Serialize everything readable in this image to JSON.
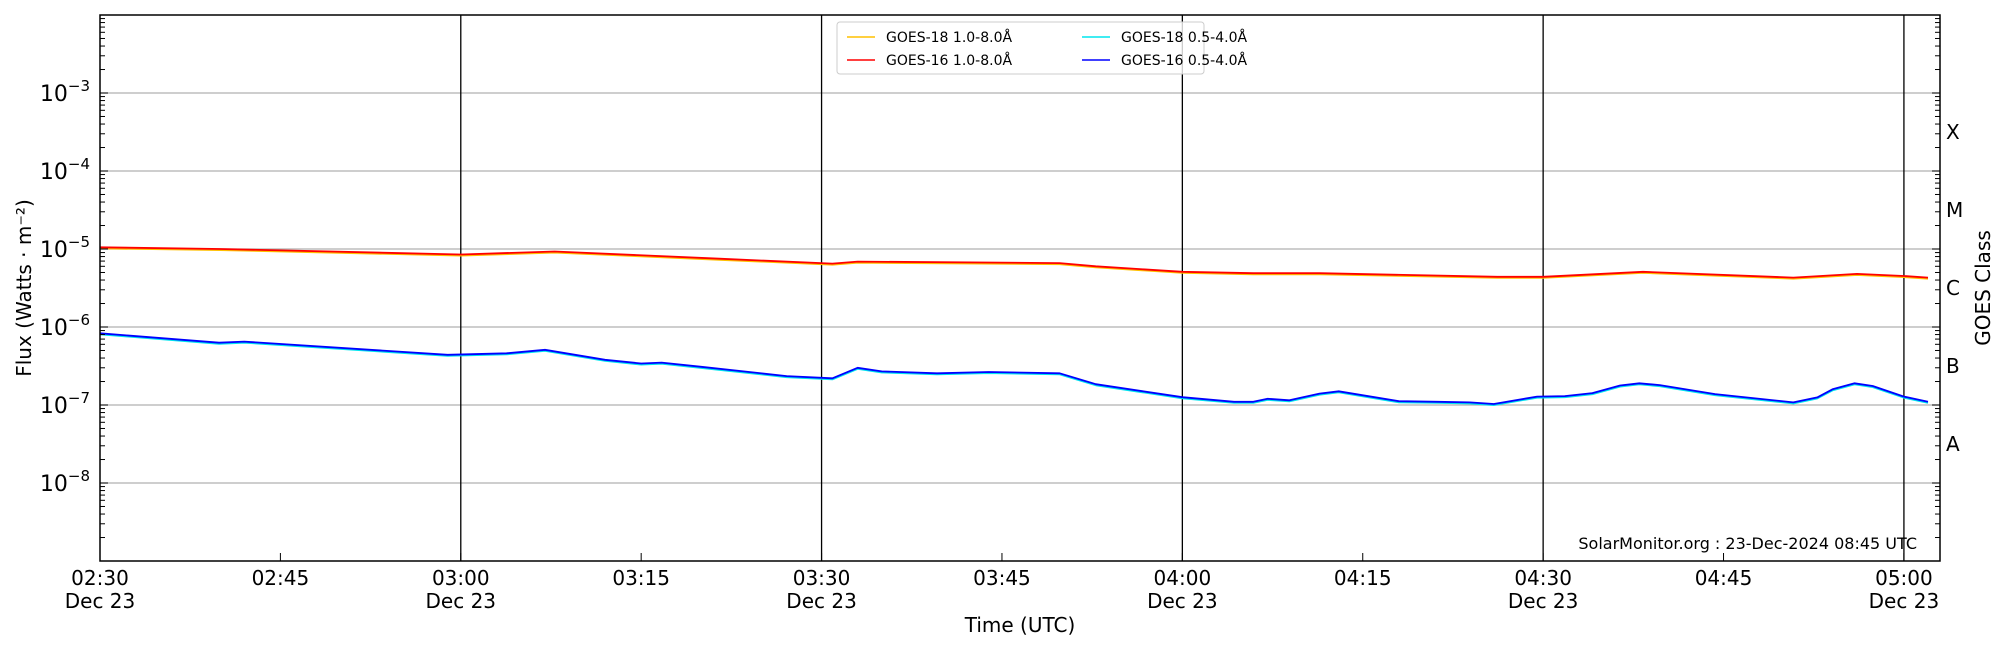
{
  "chart_data": {
    "type": "line",
    "title": "",
    "xlabel": "Time (UTC)",
    "ylabel": "Flux (Watts · m⁻²)",
    "y2label": "GOES Class",
    "yscale": "log",
    "ylim": [
      1e-09,
      0.01
    ],
    "x_unit": "minutes after 02:30 UTC, 23 Dec",
    "xlim": [
      0,
      153
    ],
    "grid": "horizontal major",
    "legend_position": "top-center",
    "x_ticks": [
      {
        "t": 0,
        "time": "02:30",
        "date": "Dec 23"
      },
      {
        "t": 15,
        "time": "02:45",
        "date": ""
      },
      {
        "t": 30,
        "time": "03:00",
        "date": "Dec 23"
      },
      {
        "t": 45,
        "time": "03:15",
        "date": ""
      },
      {
        "t": 60,
        "time": "03:30",
        "date": "Dec 23"
      },
      {
        "t": 75,
        "time": "03:45",
        "date": ""
      },
      {
        "t": 90,
        "time": "04:00",
        "date": "Dec 23"
      },
      {
        "t": 105,
        "time": "04:15",
        "date": ""
      },
      {
        "t": 120,
        "time": "04:30",
        "date": "Dec 23"
      },
      {
        "t": 135,
        "time": "04:45",
        "date": ""
      },
      {
        "t": 150,
        "time": "05:00",
        "date": "Dec 23"
      }
    ],
    "y_ticks": [
      {
        "exp": -3,
        "base": "10",
        "sup": "−3"
      },
      {
        "exp": -4,
        "base": "10",
        "sup": "−4"
      },
      {
        "exp": -5,
        "base": "10",
        "sup": "−5"
      },
      {
        "exp": -6,
        "base": "10",
        "sup": "−6"
      },
      {
        "exp": -7,
        "base": "10",
        "sup": "−7"
      },
      {
        "exp": -8,
        "base": "10",
        "sup": "−8"
      }
    ],
    "day_lines": [
      30,
      60,
      90,
      120,
      150
    ],
    "goes_classes": [
      {
        "label": "X",
        "logmid": -3.5
      },
      {
        "label": "M",
        "logmid": -4.5
      },
      {
        "label": "C",
        "logmid": -5.5
      },
      {
        "label": "B",
        "logmid": -6.5
      },
      {
        "label": "A",
        "logmid": -7.5
      }
    ],
    "legend": [
      "GOES-18 1.0-8.0Å",
      "GOES-18 0.5-4.0Å",
      "GOES-16 1.0-8.0Å",
      "GOES-16 0.5-4.0Å"
    ],
    "series": [
      {
        "name": "GOES-18 1.0-8.0Å",
        "color": "#ffc000",
        "ref": 2
      },
      {
        "name": "GOES-18 0.5-4.0Å",
        "color": "#00e5ee",
        "ref": 3
      },
      {
        "name": "GOES-16 1.0-8.0Å",
        "color": "#ff0000",
        "t": [
          0,
          10,
          30,
          37.8,
          51.5,
          60.9,
          63,
          79.8,
          82.8,
          90,
          95.9,
          101.4,
          116.2,
          120,
          128.3,
          140.8,
          146.1,
          150,
          152
        ],
        "values": [
          1.05e-05,
          1e-05,
          8.5e-06,
          9.3e-06,
          7.5e-06,
          6.5e-06,
          6.9e-06,
          6.6e-06,
          6e-06,
          5.1e-06,
          4.9e-06,
          4.9e-06,
          4.4e-06,
          4.4e-06,
          5.1e-06,
          4.3e-06,
          4.8e-06,
          4.5e-06,
          4.3e-06
        ]
      },
      {
        "name": "GOES-16 0.5-4.0Å",
        "color": "#0000ff",
        "t": [
          0,
          9.9,
          12,
          28.9,
          33.8,
          37,
          42,
          45,
          46.7,
          49.9,
          57.1,
          60.9,
          63,
          65,
          69.6,
          73.9,
          79.8,
          82.8,
          90,
          94.3,
          95.9,
          97.1,
          98.9,
          101.4,
          103,
          108,
          111.3,
          113.9,
          115.9,
          119.5,
          121.8,
          124.1,
          126.4,
          128,
          129.7,
          134.3,
          140.8,
          142.8,
          144.1,
          145.9,
          147.4,
          150,
          152
        ],
        "values": [
          8.3e-07,
          6.3e-07,
          6.5e-07,
          4.4e-07,
          4.6e-07,
          5.1e-07,
          3.8e-07,
          3.4e-07,
          3.5e-07,
          3.1e-07,
          2.35e-07,
          2.2e-07,
          3e-07,
          2.7e-07,
          2.55e-07,
          2.65e-07,
          2.55e-07,
          1.85e-07,
          1.26e-07,
          1.1e-07,
          1.1e-07,
          1.2e-07,
          1.15e-07,
          1.4e-07,
          1.5e-07,
          1.12e-07,
          1.1e-07,
          1.08e-07,
          1.03e-07,
          1.28e-07,
          1.3e-07,
          1.42e-07,
          1.78e-07,
          1.9e-07,
          1.8e-07,
          1.38e-07,
          1.08e-07,
          1.25e-07,
          1.6e-07,
          1.9e-07,
          1.75e-07,
          1.28e-07,
          1.1e-07
        ]
      }
    ],
    "annotation": "SolarMonitor.org : 23-Dec-2024 08:45 UTC"
  }
}
